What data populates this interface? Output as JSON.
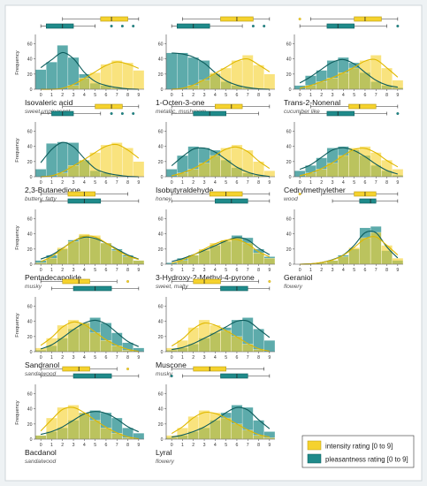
{
  "colors": {
    "background": "#eef2f4",
    "panel": "#ffffff",
    "intensity": "#f5d22e",
    "intensity_edge": "#b89a10",
    "pleasantness": "#1f8a8a",
    "pleasantness_edge": "#0d5c5c",
    "axis": "#444444"
  },
  "legend": {
    "intensity_label": "intensity rating [0 to 9]",
    "pleasantness_label": "pleasantness rating [0 to 9]"
  },
  "chart_data": {
    "type": "bar",
    "subtype": "histogram-with-kde-and-boxplots",
    "ylabel": "Frequency",
    "x_ticks": [
      "0",
      "1",
      "2",
      "3",
      "4",
      "5",
      "6",
      "7",
      "8",
      "9"
    ],
    "y_ticks": [
      "0",
      "20",
      "40",
      "60"
    ],
    "ylim": [
      0,
      70
    ],
    "xlim": [
      -0.5,
      9.5
    ],
    "legend_position": "bottom-right",
    "panels": [
      {
        "name": "Isovaleric acid",
        "descriptor": "sweet unpleasant",
        "intensity": [
          0,
          0,
          0,
          5,
          15,
          22,
          33,
          38,
          35,
          25
        ],
        "pleasantness": [
          26,
          36,
          58,
          42,
          20,
          8,
          5,
          2,
          0,
          0
        ],
        "int_box": {
          "q1": 5.5,
          "median": 6.5,
          "q3": 8,
          "whislo": 2,
          "whishi": 9,
          "fliers": []
        },
        "ple_box": {
          "q1": 0.5,
          "median": 2,
          "q3": 3,
          "whislo": 0,
          "whishi": 5,
          "fliers": [
            6.5,
            7.5,
            8.5
          ]
        }
      },
      {
        "name": "1-Octen-3-one",
        "descriptor": "metallic, mushroom",
        "intensity": [
          0,
          0,
          5,
          12,
          22,
          28,
          38,
          45,
          32,
          20
        ],
        "pleasantness": [
          48,
          48,
          42,
          38,
          20,
          10,
          5,
          2,
          0,
          0
        ],
        "int_box": {
          "q1": 4.5,
          "median": 6,
          "q3": 7.5,
          "whislo": 1,
          "whishi": 9,
          "fliers": []
        },
        "ple_box": {
          "q1": 0.5,
          "median": 2,
          "q3": 3.5,
          "whislo": 0,
          "whishi": 6.5,
          "fliers": [
            7.5,
            8.5
          ]
        }
      },
      {
        "name": "Trans-2-Nonenal",
        "descriptor": "cucumber like",
        "intensity": [
          0,
          5,
          10,
          15,
          22,
          28,
          38,
          45,
          28,
          12
        ],
        "pleasantness": [
          5,
          18,
          25,
          38,
          42,
          35,
          22,
          10,
          5,
          2
        ],
        "int_box": {
          "q1": 5,
          "median": 6,
          "q3": 7.5,
          "whislo": 1,
          "whishi": 9,
          "fliers": [
            0
          ]
        },
        "ple_box": {
          "q1": 2.5,
          "median": 3.5,
          "q3": 5,
          "whislo": 0,
          "whishi": 8,
          "fliers": [
            9
          ]
        }
      },
      {
        "name": "2,3-Butanedione",
        "descriptor": "buttery, fatty",
        "intensity": [
          0,
          0,
          5,
          15,
          22,
          32,
          42,
          45,
          38,
          20
        ],
        "pleasantness": [
          10,
          44,
          46,
          45,
          22,
          8,
          5,
          2,
          0,
          0
        ],
        "int_box": {
          "q1": 5,
          "median": 6.5,
          "q3": 7.5,
          "whislo": 2,
          "whishi": 9,
          "fliers": []
        },
        "ple_box": {
          "q1": 1,
          "median": 2,
          "q3": 3,
          "whislo": 0,
          "whishi": 5.5,
          "fliers": [
            6.5,
            7.5,
            8.5
          ]
        }
      },
      {
        "name": "Isobutyraldehyde",
        "descriptor": "honey",
        "intensity": [
          0,
          5,
          10,
          18,
          28,
          38,
          42,
          35,
          20,
          8
        ],
        "pleasantness": [
          10,
          28,
          40,
          38,
          35,
          22,
          12,
          5,
          2,
          0
        ],
        "int_box": {
          "q1": 4,
          "median": 5.5,
          "q3": 6.5,
          "whislo": 0,
          "whishi": 9,
          "fliers": []
        },
        "ple_box": {
          "q1": 2,
          "median": 3.5,
          "q3": 5,
          "whislo": 0,
          "whishi": 8,
          "fliers": []
        }
      },
      {
        "name": "Cedrylmethylether",
        "descriptor": "wood",
        "intensity": [
          0,
          5,
          10,
          18,
          28,
          38,
          40,
          32,
          22,
          10
        ],
        "pleasantness": [
          8,
          15,
          25,
          38,
          40,
          35,
          28,
          15,
          8,
          2
        ],
        "int_box": {
          "q1": 4.5,
          "median": 5.5,
          "q3": 7,
          "whislo": 1,
          "whishi": 9,
          "fliers": []
        },
        "ple_box": {
          "q1": 2.5,
          "median": 3.5,
          "q3": 5,
          "whislo": 0,
          "whishi": 8,
          "fliers": [
            9
          ]
        }
      },
      {
        "name": "Pentadecanolide",
        "descriptor": "musky",
        "intensity": [
          2,
          8,
          22,
          30,
          40,
          38,
          28,
          18,
          10,
          5
        ],
        "pleasantness": [
          5,
          12,
          20,
          32,
          38,
          35,
          28,
          20,
          12,
          5
        ],
        "int_box": {
          "q1": 2.5,
          "median": 4,
          "q3": 5,
          "whislo": 0,
          "whishi": 8,
          "fliers": []
        },
        "ple_box": {
          "q1": 2.5,
          "median": 4,
          "q3": 5.5,
          "whislo": 0,
          "whishi": 9,
          "fliers": []
        }
      },
      {
        "name": "3-Hydroxy-2-Methyl-4-pyrone",
        "descriptor": "sweet, malty",
        "intensity": [
          0,
          5,
          12,
          20,
          28,
          32,
          35,
          28,
          15,
          8
        ],
        "pleasantness": [
          2,
          8,
          12,
          18,
          25,
          30,
          38,
          35,
          20,
          10
        ],
        "int_box": {
          "q1": 3.5,
          "median": 5,
          "q3": 6.5,
          "whislo": 0,
          "whishi": 9,
          "fliers": []
        },
        "ple_box": {
          "q1": 4,
          "median": 5.5,
          "q3": 7,
          "whislo": 0,
          "whishi": 9,
          "fliers": []
        }
      },
      {
        "name": "Geraniol",
        "descriptor": "flowery",
        "intensity": [
          0,
          0,
          2,
          5,
          10,
          22,
          35,
          42,
          25,
          8
        ],
        "pleasantness": [
          0,
          0,
          2,
          5,
          12,
          20,
          48,
          50,
          18,
          5
        ],
        "int_box": {
          "q1": 5,
          "median": 6,
          "q3": 7,
          "whislo": 2,
          "whishi": 9,
          "fliers": [
            0
          ]
        },
        "ple_box": {
          "q1": 5.5,
          "median": 6.5,
          "q3": 7,
          "whislo": 3,
          "whishi": 9,
          "fliers": []
        }
      },
      {
        "name": "Sandranol",
        "descriptor": "sandalwood",
        "intensity": [
          5,
          18,
          35,
          42,
          38,
          25,
          15,
          8,
          2,
          0
        ],
        "pleasantness": [
          2,
          8,
          18,
          30,
          38,
          45,
          38,
          25,
          12,
          5
        ],
        "int_box": {
          "q1": 2,
          "median": 3.5,
          "q3": 4.5,
          "whislo": 0,
          "whishi": 7,
          "fliers": [
            8
          ]
        },
        "ple_box": {
          "q1": 3,
          "median": 5,
          "q3": 6.5,
          "whislo": 1,
          "whishi": 9,
          "fliers": []
        }
      },
      {
        "name": "Muscone",
        "descriptor": "musky",
        "intensity": [
          5,
          15,
          32,
          42,
          35,
          28,
          20,
          10,
          3,
          0
        ],
        "pleasantness": [
          2,
          5,
          10,
          18,
          25,
          32,
          42,
          45,
          30,
          15
        ],
        "int_box": {
          "q1": 2,
          "median": 3,
          "q3": 4.5,
          "whislo": 0,
          "whishi": 8,
          "fliers": [
            9
          ]
        },
        "ple_box": {
          "q1": 4.5,
          "median": 6,
          "q3": 7,
          "whislo": 1,
          "whishi": 9,
          "fliers": []
        }
      },
      {
        "name": "Bacdanol",
        "descriptor": "sandalwood",
        "intensity": [
          5,
          28,
          42,
          45,
          35,
          25,
          15,
          8,
          2,
          0
        ],
        "pleasantness": [
          5,
          10,
          15,
          25,
          35,
          38,
          35,
          28,
          15,
          8
        ],
        "int_box": {
          "q1": 2,
          "median": 3.5,
          "q3": 4.5,
          "whislo": 0,
          "whishi": 7,
          "fliers": [
            8
          ]
        },
        "ple_box": {
          "q1": 3,
          "median": 5,
          "q3": 6.5,
          "whislo": 0,
          "whishi": 9,
          "fliers": []
        }
      },
      {
        "name": "Lyral",
        "descriptor": "flowery",
        "intensity": [
          5,
          15,
          30,
          38,
          35,
          28,
          20,
          12,
          5,
          2
        ],
        "pleasantness": [
          2,
          5,
          10,
          15,
          25,
          35,
          45,
          42,
          25,
          10
        ],
        "int_box": {
          "q1": 2,
          "median": 3.5,
          "q3": 5,
          "whislo": 0,
          "whishi": 8.5,
          "fliers": []
        },
        "ple_box": {
          "q1": 4.5,
          "median": 6,
          "q3": 7,
          "whislo": 1,
          "whishi": 9,
          "fliers": [
            0
          ]
        }
      }
    ]
  }
}
